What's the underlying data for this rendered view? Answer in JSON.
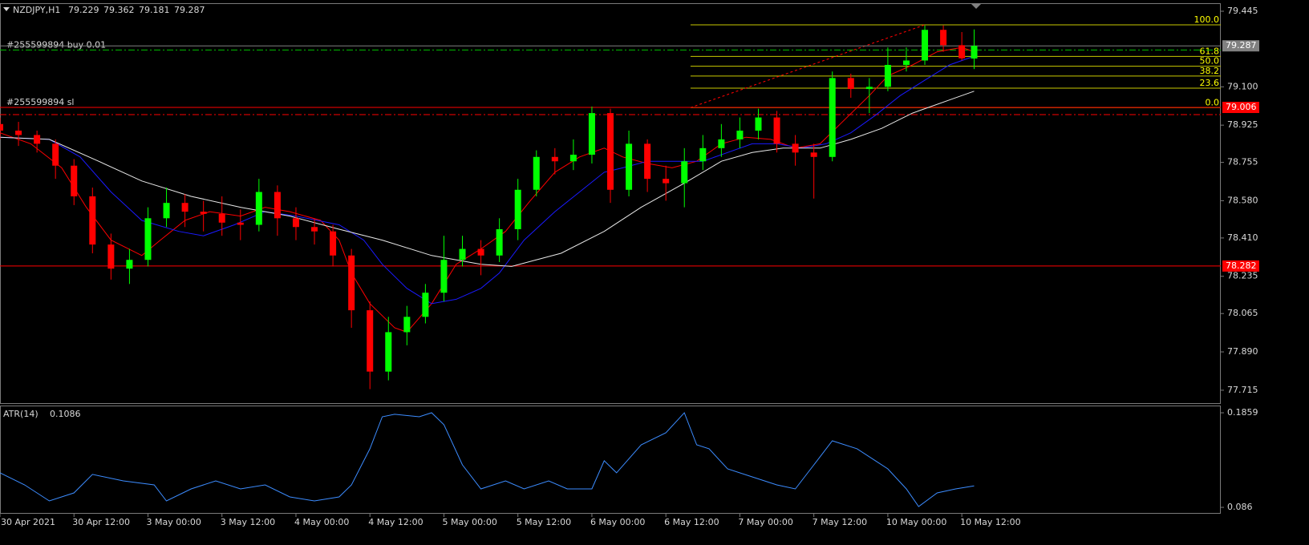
{
  "chart_data": [
    {
      "type": "candlestick",
      "title": "NZDJPY,H1",
      "header_values": [
        79.229,
        79.362,
        79.181,
        79.287
      ],
      "x": [
        0,
        3,
        6,
        9,
        12,
        15,
        18,
        21,
        24,
        27,
        30,
        33,
        36,
        39,
        42,
        45,
        48,
        51,
        54,
        57,
        60,
        63,
        66,
        69,
        72,
        75,
        78,
        81,
        84,
        87,
        90,
        93,
        96,
        99,
        102,
        105,
        108,
        111,
        114,
        117,
        120,
        123,
        126,
        129,
        132,
        135,
        138,
        141,
        144,
        147,
        150,
        153,
        156,
        158
      ],
      "open": [
        78.93,
        78.9,
        78.88,
        78.84,
        78.74,
        78.6,
        78.38,
        78.27,
        78.31,
        78.5,
        78.57,
        78.53,
        78.52,
        78.48,
        78.47,
        78.62,
        78.5,
        78.46,
        78.44,
        78.33,
        78.08,
        77.8,
        77.98,
        78.05,
        78.16,
        78.31,
        78.36,
        78.33,
        78.45,
        78.63,
        78.78,
        78.76,
        78.79,
        78.98,
        78.63,
        78.84,
        78.68,
        78.66,
        78.76,
        78.82,
        78.86,
        78.9,
        78.96,
        78.84,
        78.8,
        78.78,
        79.14,
        79.09,
        79.1,
        79.2,
        79.22,
        79.36,
        79.29,
        79.229
      ],
      "high": [
        78.96,
        78.94,
        78.9,
        78.86,
        78.77,
        78.64,
        78.43,
        78.36,
        78.55,
        78.64,
        78.61,
        78.58,
        78.6,
        78.54,
        78.68,
        78.65,
        78.55,
        78.5,
        78.47,
        78.36,
        78.12,
        78.05,
        78.1,
        78.2,
        78.42,
        78.42,
        78.4,
        78.5,
        78.68,
        78.81,
        78.82,
        78.86,
        79.01,
        79.0,
        78.9,
        78.86,
        78.74,
        78.82,
        78.88,
        78.93,
        78.96,
        79.0,
        78.99,
        78.88,
        78.84,
        79.17,
        79.16,
        79.14,
        79.28,
        79.28,
        79.38,
        79.38,
        79.35,
        79.362
      ],
      "low": [
        78.86,
        78.83,
        78.8,
        78.68,
        78.56,
        78.34,
        78.22,
        78.2,
        78.28,
        78.46,
        78.46,
        78.44,
        78.42,
        78.4,
        78.44,
        78.42,
        78.4,
        78.38,
        78.28,
        78.0,
        77.72,
        77.76,
        77.92,
        78.02,
        78.12,
        78.28,
        78.24,
        78.3,
        78.4,
        78.6,
        78.7,
        78.72,
        78.75,
        78.57,
        78.6,
        78.62,
        78.58,
        78.55,
        78.72,
        78.78,
        78.82,
        78.86,
        78.8,
        78.74,
        78.59,
        78.76,
        79.05,
        78.98,
        79.08,
        79.17,
        79.2,
        79.26,
        79.22,
        79.181
      ],
      "close": [
        78.9,
        78.88,
        78.84,
        78.74,
        78.6,
        78.38,
        78.27,
        78.31,
        78.5,
        78.57,
        78.53,
        78.52,
        78.48,
        78.47,
        78.62,
        78.5,
        78.46,
        78.44,
        78.33,
        78.08,
        77.8,
        77.98,
        78.05,
        78.16,
        78.31,
        78.36,
        78.33,
        78.45,
        78.63,
        78.78,
        78.76,
        78.79,
        78.98,
        78.63,
        78.84,
        78.68,
        78.66,
        78.76,
        78.82,
        78.86,
        78.9,
        78.96,
        78.84,
        78.8,
        78.78,
        79.14,
        79.09,
        79.1,
        79.2,
        79.22,
        79.36,
        79.29,
        79.23,
        79.287
      ],
      "up_color": "#00ff00",
      "down_color": "#ff0000",
      "lines": [
        {
          "color": "#ff0000",
          "x": [
            0,
            5,
            10,
            14,
            18,
            23,
            26,
            30,
            34,
            39,
            43,
            47,
            52,
            55,
            57,
            60,
            64,
            66,
            70,
            74,
            78,
            82,
            86,
            90,
            94,
            98,
            101,
            105,
            109,
            113,
            117,
            121,
            125,
            129,
            133,
            137,
            141,
            144,
            148,
            152,
            156,
            158
          ],
          "values": [
            78.89,
            78.84,
            78.73,
            78.55,
            78.4,
            78.33,
            78.4,
            78.49,
            78.53,
            78.51,
            78.55,
            78.53,
            78.49,
            78.4,
            78.25,
            78.11,
            78.0,
            77.98,
            78.11,
            78.29,
            78.36,
            78.44,
            78.58,
            78.71,
            78.78,
            78.82,
            78.78,
            78.75,
            78.73,
            78.76,
            78.84,
            78.87,
            78.86,
            78.82,
            78.84,
            78.95,
            79.06,
            79.15,
            79.2,
            79.26,
            79.28,
            79.26
          ]
        },
        {
          "color": "#1a1aff",
          "x": [
            0,
            8,
            13,
            18,
            23,
            29,
            33,
            38,
            43,
            48,
            55,
            59,
            62,
            66,
            70,
            74,
            78,
            81,
            85,
            90,
            94,
            98,
            101,
            105,
            111,
            114,
            118,
            122,
            126,
            130,
            134,
            138,
            142,
            146,
            150,
            154,
            158
          ],
          "values": [
            78.87,
            78.86,
            78.78,
            78.62,
            78.49,
            78.44,
            78.42,
            78.47,
            78.53,
            78.51,
            78.47,
            78.4,
            78.29,
            78.18,
            78.11,
            78.13,
            78.18,
            78.25,
            78.4,
            78.53,
            78.62,
            78.71,
            78.73,
            78.76,
            78.76,
            78.76,
            78.8,
            78.84,
            78.84,
            78.82,
            78.84,
            78.89,
            78.97,
            79.06,
            79.13,
            79.2,
            79.24
          ]
        },
        {
          "color": "#e8e8e8",
          "x": [
            0,
            8,
            16,
            23,
            31,
            39,
            47,
            55,
            62,
            70,
            78,
            83,
            91,
            98,
            104,
            111,
            117,
            122,
            127,
            133,
            138,
            143,
            148,
            154,
            158
          ],
          "values": [
            78.87,
            78.86,
            78.76,
            78.67,
            78.6,
            78.55,
            78.51,
            78.45,
            78.4,
            78.33,
            78.29,
            78.28,
            78.34,
            78.44,
            78.55,
            78.66,
            78.76,
            78.8,
            78.82,
            78.82,
            78.86,
            78.91,
            78.98,
            79.04,
            79.08
          ]
        }
      ],
      "price_lines": [
        {
          "label": "#255599894 buy 0.01",
          "value": 79.268,
          "color": "#00c000",
          "style": "dashdot",
          "box": false
        },
        {
          "value": 79.287,
          "color": "#808080",
          "style": "solid",
          "box": true
        },
        {
          "label": "#255599894 sl",
          "value": 79.006,
          "color": "#ff0000",
          "style": "solid",
          "box": true
        },
        {
          "value": 78.973,
          "color": "#ff0000",
          "style": "dashdot",
          "box": false
        },
        {
          "value": 78.282,
          "color": "#ff0000",
          "style": "solid",
          "box": true
        }
      ],
      "fibonacci": {
        "color": "#c8c800",
        "label_color": "#ffff00",
        "x_start": 112,
        "levels": [
          {
            "label": "100.0",
            "value": 79.383
          },
          {
            "label": "61.8",
            "value": 79.239
          },
          {
            "label": "50.0",
            "value": 79.194
          },
          {
            "label": "38.2",
            "value": 79.149
          },
          {
            "label": "23.6",
            "value": 79.094
          },
          {
            "label": "0.0",
            "value": 79.005
          }
        ],
        "trendline": {
          "color": "#ff0000",
          "x": [
            112,
            150
          ],
          "values": [
            79.005,
            79.383
          ]
        }
      },
      "xlim": [
        0,
        198
      ],
      "xticks": [
        {
          "value": 0,
          "label": "30 Apr 2021"
        },
        {
          "value": 12,
          "label": "30 Apr 12:00"
        },
        {
          "value": 24,
          "label": "3 May 00:00"
        },
        {
          "value": 36,
          "label": "3 May 12:00"
        },
        {
          "value": 48,
          "label": "4 May 00:00"
        },
        {
          "value": 60,
          "label": "4 May 12:00"
        },
        {
          "value": 72,
          "label": "5 May 00:00"
        },
        {
          "value": 84,
          "label": "5 May 12:00"
        },
        {
          "value": 96,
          "label": "6 May 00:00"
        },
        {
          "value": 108,
          "label": "6 May 12:00"
        },
        {
          "value": 120,
          "label": "7 May 00:00"
        },
        {
          "value": 132,
          "label": "7 May 12:00"
        },
        {
          "value": 144,
          "label": "10 May 00:00"
        },
        {
          "value": 156,
          "label": "10 May 12:00"
        }
      ],
      "ylim": [
        77.656,
        79.478
      ],
      "yticks": [
        79.445,
        {
          "value": 79.1,
          "label": "79.100"
        },
        78.925,
        78.755,
        {
          "value": 78.58,
          "label": "78.580"
        },
        {
          "value": 78.41,
          "label": "78.410"
        },
        78.235,
        78.065,
        {
          "value": 77.89,
          "label": "77.890"
        },
        77.715
      ]
    },
    {
      "type": "line",
      "title": "ATR(14)",
      "title_value": 0.1086,
      "color": "#3c8cff",
      "x": [
        0,
        4,
        8,
        12,
        15,
        20,
        25,
        27,
        31,
        35,
        39,
        43,
        47,
        51,
        55,
        57,
        60,
        62,
        64,
        68,
        70,
        72,
        75,
        78,
        82,
        85,
        89,
        92,
        96,
        98,
        100,
        104,
        108,
        111,
        113,
        115,
        118,
        122,
        126,
        129,
        132,
        135,
        139,
        142,
        144,
        147,
        149,
        152,
        155,
        158
      ],
      "values": [
        0.1225,
        0.1097,
        0.0928,
        0.1013,
        0.1208,
        0.114,
        0.1097,
        0.0928,
        0.1055,
        0.114,
        0.1055,
        0.1097,
        0.097,
        0.0928,
        0.097,
        0.1097,
        0.1479,
        0.1817,
        0.1843,
        0.1817,
        0.1859,
        0.1733,
        0.1309,
        0.1055,
        0.114,
        0.1055,
        0.114,
        0.1055,
        0.1055,
        0.1352,
        0.1225,
        0.1521,
        0.1648,
        0.1859,
        0.1521,
        0.1479,
        0.1267,
        0.1182,
        0.1097,
        0.1055,
        0.1309,
        0.1563,
        0.1479,
        0.1352,
        0.1267,
        0.1055,
        0.0869,
        0.1013,
        0.1055,
        0.1086
      ],
      "xlim": [
        0,
        198
      ],
      "ylim": [
        0.0801,
        0.1927
      ],
      "yticks": [
        0.1859,
        0.086
      ]
    }
  ]
}
